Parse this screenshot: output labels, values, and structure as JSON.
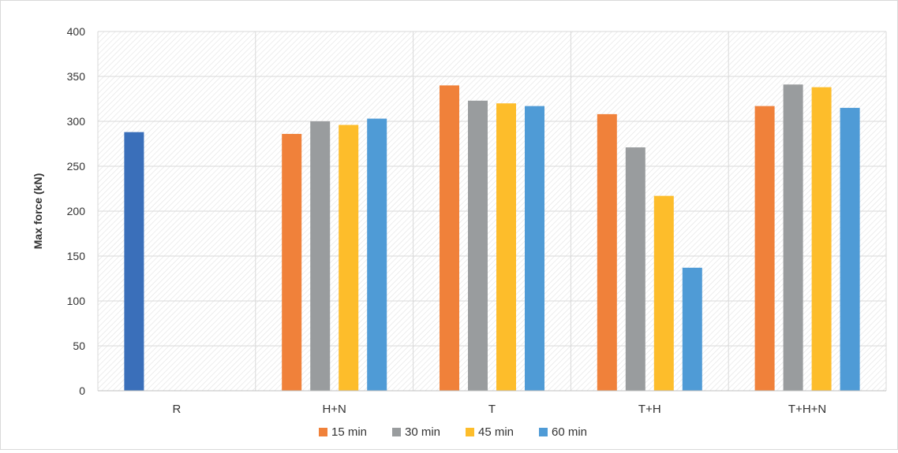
{
  "chart_data": {
    "type": "bar",
    "title": "",
    "xlabel": "",
    "ylabel": "Max force (kN)",
    "ylim": [
      0,
      400
    ],
    "yticks": [
      0,
      50,
      100,
      150,
      200,
      250,
      300,
      350,
      400
    ],
    "grid": true,
    "legend_position": "bottom",
    "categories": [
      "R",
      "H+N",
      "T",
      "T+H",
      "T+H+N"
    ],
    "reference": {
      "category": "R",
      "value": 288,
      "color": "#3a6fba"
    },
    "series": [
      {
        "name": "15 min",
        "color": "#f0813a",
        "values": [
          null,
          286,
          340,
          308,
          317
        ]
      },
      {
        "name": "30 min",
        "color": "#999c9e",
        "values": [
          null,
          300,
          323,
          271,
          341
        ]
      },
      {
        "name": "45 min",
        "color": "#fdbd2b",
        "values": [
          null,
          296,
          320,
          217,
          338
        ]
      },
      {
        "name": "60 min",
        "color": "#4f9bd6",
        "values": [
          null,
          303,
          317,
          137,
          315
        ]
      }
    ]
  }
}
